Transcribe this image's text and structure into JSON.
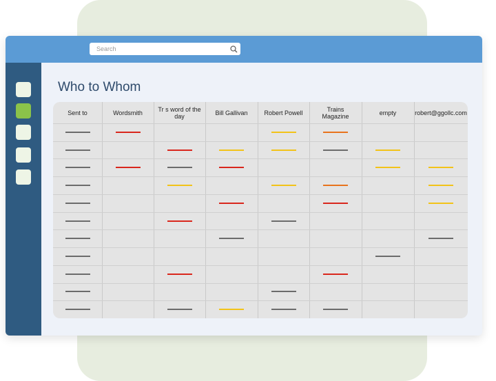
{
  "search": {
    "placeholder": "Search"
  },
  "page": {
    "title": "Who to Whom"
  },
  "table": {
    "columns": [
      "Sent to",
      "Wordsmith",
      "Tr s word of the day",
      "Bill Gallivan",
      "Robert Powell",
      "Trains Magazine",
      "empty",
      "robert@ggollc.com"
    ],
    "colors": {
      "gray": "#6b6b6b",
      "red": "#d9261c",
      "yellow": "#f2c318",
      "orange": "#e8731c"
    },
    "rows": [
      [
        "gray",
        "red",
        null,
        null,
        "yellow",
        "orange",
        null,
        null
      ],
      [
        "gray",
        null,
        "red",
        "yellow",
        "yellow",
        "gray",
        "yellow",
        null
      ],
      [
        "gray",
        "red",
        "gray",
        "red",
        null,
        null,
        "yellow",
        "yellow"
      ],
      [
        "gray",
        null,
        "yellow",
        null,
        "yellow",
        "orange",
        null,
        "yellow"
      ],
      [
        "gray",
        null,
        null,
        "red",
        null,
        "red",
        null,
        "yellow"
      ],
      [
        "gray",
        null,
        "red",
        null,
        "gray",
        null,
        null,
        null
      ],
      [
        "gray",
        null,
        null,
        "gray",
        null,
        null,
        null,
        "gray"
      ],
      [
        "gray",
        null,
        null,
        null,
        null,
        null,
        "gray",
        null
      ],
      [
        "gray",
        null,
        "red",
        null,
        null,
        "red",
        null,
        null
      ],
      [
        "gray",
        null,
        null,
        null,
        "gray",
        null,
        null,
        null
      ],
      [
        "gray",
        null,
        "gray",
        "yellow",
        "gray",
        "gray",
        null,
        null
      ]
    ]
  }
}
